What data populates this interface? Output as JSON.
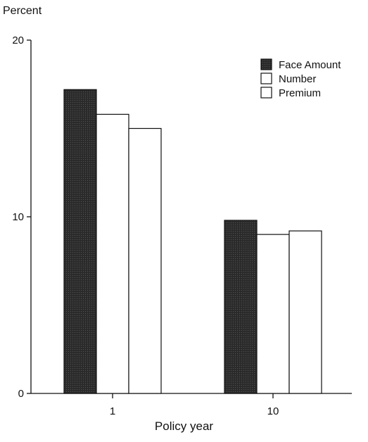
{
  "chart_data": {
    "type": "bar",
    "title": "",
    "ylabel": "Percent",
    "xlabel": "Policy year",
    "categories": [
      "1",
      "10"
    ],
    "ylim": [
      0,
      20
    ],
    "yticks": [
      0,
      10,
      20
    ],
    "grid": false,
    "legend_position": "top-right",
    "series": [
      {
        "name": "Face Amount",
        "values": [
          17.2,
          9.8
        ],
        "color": "#1e1e1e"
      },
      {
        "name": "Number",
        "values": [
          15.8,
          9.0
        ],
        "color": "#ffffff"
      },
      {
        "name": "Premium",
        "values": [
          15.0,
          9.2
        ],
        "color": "#ffffff"
      }
    ]
  }
}
